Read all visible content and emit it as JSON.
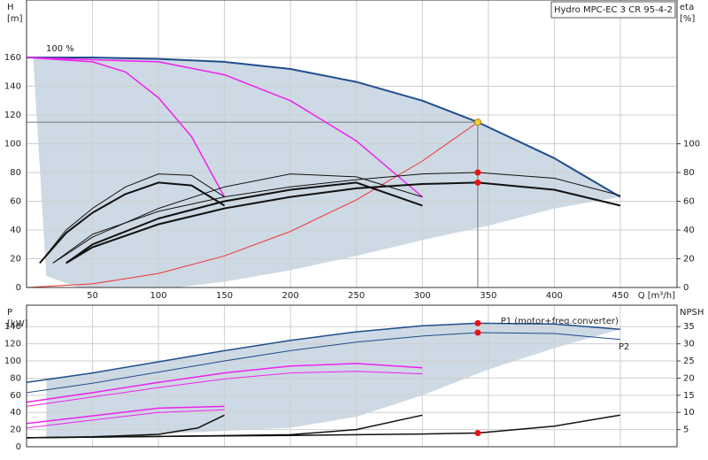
{
  "chart_data": [
    {
      "type": "line",
      "title": "Hydro MPC-EC 3 CR 95-4-2",
      "ylabel": "H",
      "yunit": "[m]",
      "y2label": "eta",
      "y2unit": "[%]",
      "xlabel": "Q [m³/h]",
      "annotation": "100 %",
      "xlim": [
        0,
        493
      ],
      "ylim": [
        0,
        200
      ],
      "y2lim": [
        0,
        200
      ],
      "xticks": [
        50,
        100,
        150,
        200,
        250,
        300,
        350,
        400,
        450
      ],
      "yticks": [
        0,
        20,
        40,
        60,
        80,
        100,
        120,
        140,
        160
      ],
      "y2ticks": [
        0,
        20,
        40,
        60,
        80,
        100
      ],
      "xtick_labels": true,
      "grid": true,
      "area": {
        "color": "#cdd9e4",
        "x": [
          5,
          50,
          100,
          150,
          200,
          250,
          300,
          342,
          400,
          450,
          400,
          350,
          300,
          250,
          200,
          150,
          113,
          40,
          15,
          5
        ],
        "values": [
          160,
          160,
          159,
          157,
          152,
          143,
          130,
          115,
          90,
          63,
          55,
          43,
          33,
          22,
          12,
          4,
          0,
          0,
          8,
          160
        ]
      },
      "series": [
        {
          "color": "#1f4e8c",
          "width": 2,
          "x": [
            0,
            50,
            100,
            150,
            200,
            250,
            300,
            342,
            400,
            450
          ],
          "values": [
            160,
            160,
            159,
            157,
            152,
            143,
            130,
            115,
            90,
            63
          ]
        },
        {
          "color": "#ee22ee",
          "width": 1.5,
          "x": [
            0,
            50,
            75,
            100,
            125,
            150
          ],
          "values": [
            160,
            157,
            150,
            132,
            105,
            63
          ]
        },
        {
          "color": "#ee22ee",
          "width": 1.5,
          "x": [
            0,
            100,
            150,
            200,
            250,
            300
          ],
          "values": [
            160,
            157,
            148,
            130,
            102,
            63
          ]
        },
        {
          "color": "#ee3333",
          "width": 1,
          "x": [
            0,
            50,
            100,
            150,
            200,
            250,
            300,
            342
          ],
          "values": [
            0,
            2.5,
            9.8,
            22,
            39,
            61,
            88,
            115
          ]
        },
        {
          "color": "#111111",
          "width": 1,
          "axis": "y2",
          "x": [
            20,
            50,
            100,
            150,
            200,
            250,
            300,
            342,
            400,
            450
          ],
          "values": [
            17,
            37,
            53,
            63,
            70,
            75,
            79,
            80,
            76,
            64
          ]
        },
        {
          "color": "#111111",
          "width": 2,
          "axis": "y2",
          "x": [
            30,
            50,
            100,
            150,
            200,
            250,
            300,
            342,
            400,
            450
          ],
          "values": [
            17,
            28,
            44,
            55,
            63,
            69,
            72,
            73,
            68,
            57
          ]
        },
        {
          "color": "#111111",
          "width": 1,
          "axis": "y2",
          "x": [
            20,
            50,
            100,
            150,
            200,
            250,
            300
          ],
          "values": [
            17,
            35,
            55,
            70,
            79,
            77,
            63
          ]
        },
        {
          "color": "#111111",
          "width": 2,
          "axis": "y2",
          "x": [
            30,
            50,
            100,
            150,
            200,
            250,
            300
          ],
          "values": [
            17,
            30,
            48,
            60,
            68,
            73,
            57
          ]
        },
        {
          "color": "#111111",
          "width": 1,
          "axis": "y2",
          "x": [
            10,
            30,
            50,
            75,
            100,
            125,
            150
          ],
          "values": [
            17,
            40,
            55,
            70,
            79,
            78,
            63
          ]
        },
        {
          "color": "#111111",
          "width": 2,
          "axis": "y2",
          "x": [
            10,
            30,
            50,
            75,
            100,
            125,
            150
          ],
          "values": [
            17,
            38,
            52,
            65,
            73,
            71,
            57
          ]
        }
      ],
      "points": [
        {
          "x": 342,
          "y": 115,
          "color": "#f5d033"
        },
        {
          "x": 342,
          "y": 80,
          "axis": "y2",
          "color": "#ee1111"
        },
        {
          "x": 342,
          "y": 73,
          "axis": "y2",
          "color": "#ee1111"
        }
      ]
    },
    {
      "type": "line",
      "ylabel": "P",
      "yunit": "[kW]",
      "y2label": "NPSH",
      "xlim": [
        0,
        493
      ],
      "ylim": [
        0,
        165
      ],
      "y2lim": [
        0,
        41.25
      ],
      "xticks": [
        50,
        100,
        150,
        200,
        250,
        300,
        350,
        400,
        450
      ],
      "yticks": [
        0,
        20,
        40,
        60,
        80,
        100,
        120,
        140
      ],
      "y2ticks": [
        5,
        10,
        15,
        20,
        25,
        30,
        35
      ],
      "xtick_labels": false,
      "grid": true,
      "area": {
        "color": "#cdd9e4",
        "x": [
          15,
          50,
          100,
          150,
          200,
          250,
          300,
          342,
          400,
          450,
          400,
          350,
          300,
          250,
          200,
          100,
          15
        ],
        "values": [
          78,
          86,
          99,
          112,
          124,
          134,
          141,
          144,
          143,
          137,
          115,
          90,
          60,
          35,
          22,
          15,
          10
        ]
      },
      "series": [
        {
          "name": "P1 (motor+freq.converter)",
          "color": "#1f4e8c",
          "width": 1.5,
          "x": [
            0,
            50,
            100,
            150,
            200,
            250,
            300,
            342,
            400,
            450
          ],
          "values": [
            75,
            86,
            99,
            112,
            124,
            134,
            141,
            144,
            143,
            137
          ]
        },
        {
          "name": "P2",
          "color": "#1f4e8c",
          "width": 1,
          "x": [
            0,
            50,
            100,
            150,
            200,
            250,
            300,
            342,
            400,
            450
          ],
          "values": [
            63,
            74,
            87,
            100,
            112,
            122,
            129,
            133,
            132,
            125
          ]
        },
        {
          "color": "#ee22ee",
          "width": 1.5,
          "x": [
            0,
            50,
            100,
            150,
            200,
            250,
            300
          ],
          "values": [
            52,
            63,
            75,
            86,
            94,
            97,
            92
          ]
        },
        {
          "color": "#ee22ee",
          "width": 1,
          "x": [
            0,
            50,
            100,
            150,
            200,
            250,
            300
          ],
          "values": [
            47,
            58,
            69,
            79,
            86,
            88,
            85
          ]
        },
        {
          "color": "#ee22ee",
          "width": 1.5,
          "x": [
            0,
            50,
            100,
            150
          ],
          "values": [
            27,
            36,
            45,
            47
          ]
        },
        {
          "color": "#ee22ee",
          "width": 1,
          "x": [
            0,
            50,
            100,
            150
          ],
          "values": [
            22,
            31,
            40,
            43
          ]
        },
        {
          "color": "#111111",
          "width": 1.5,
          "axis": "y2",
          "x": [
            0,
            100,
            200,
            300,
            342,
            400,
            450
          ],
          "values": [
            2.6,
            3,
            3.3,
            3.7,
            4,
            6,
            9.2
          ]
        },
        {
          "color": "#111111",
          "width": 1.5,
          "axis": "y2",
          "x": [
            0,
            100,
            200,
            250,
            300
          ],
          "values": [
            2.6,
            3,
            3.5,
            5,
            9.2
          ]
        },
        {
          "color": "#111111",
          "width": 1.5,
          "axis": "y2",
          "x": [
            0,
            50,
            100,
            130,
            150
          ],
          "values": [
            2.6,
            2.9,
            3.6,
            5.5,
            9.2
          ]
        }
      ],
      "points": [
        {
          "x": 342,
          "y": 144,
          "color": "#ee1111"
        },
        {
          "x": 342,
          "y": 133,
          "color": "#ee1111"
        },
        {
          "x": 342,
          "y": 4,
          "axis": "y2",
          "color": "#ee1111"
        }
      ]
    }
  ]
}
